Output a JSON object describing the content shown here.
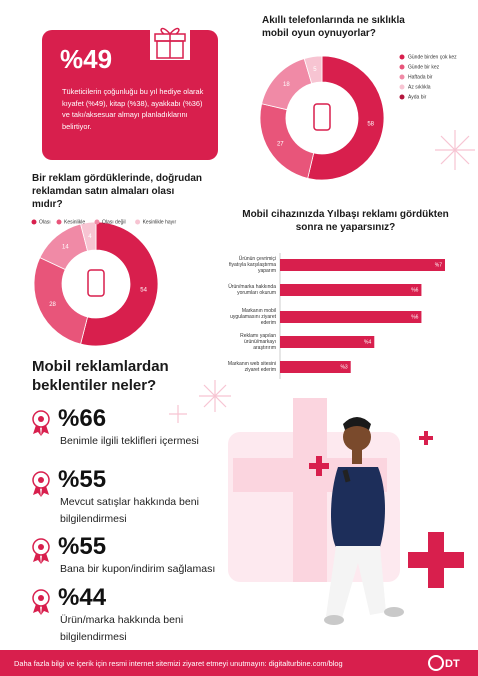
{
  "promo": {
    "headline": "%49",
    "text": "Tüketicilerin çoğunluğu bu yıl hediye olarak kıyafet (%49), kitap (%38), ayakkabı (%36) ve takı/aksesuar almayı planladıklarını belirtiyor."
  },
  "chart_data": [
    {
      "type": "pie",
      "title": "Akıllı telefonlarında ne sıklıkla mobil oyun oynuyorlar?",
      "categories": [
        "Günde birden çok kez",
        "Günde bir kez",
        "Haftada bir",
        "Az sıklıkla",
        "Ayda bir"
      ],
      "values": [
        58,
        27,
        18,
        5,
        null
      ],
      "colors": [
        "#d81f4d",
        "#e8557a",
        "#f08aa6",
        "#f7c4d2",
        "#b3173d"
      ],
      "legend": "right"
    },
    {
      "type": "pie",
      "title": "Bir reklam gördüklerinde, doğrudan reklamdan satın almaları olası mıdır?",
      "categories": [
        "Olası",
        "Kesinlikle",
        "Olası değil",
        "Kesinlikle hayır"
      ],
      "values": [
        54,
        28,
        14,
        4
      ],
      "colors": [
        "#d81f4d",
        "#e8557a",
        "#f08aa6",
        "#f7c4d2"
      ],
      "legend": "top"
    },
    {
      "type": "bar",
      "title": "Mobil cihazınızda Yılbaşı reklamı gördükten sonra ne yaparsınız?",
      "categories": [
        "Ürünün çevrimiçi fiyatıyla karşılaştırma yaparım",
        "Ürün/marka hakkında yorumları okurum",
        "Markanın mobil uygulamasını ziyaret ederim",
        "Reklamı yapılan ürünü/markayı araştırırım",
        "Markanın web sitesini ziyaret ederim"
      ],
      "values": [
        7,
        6,
        6,
        4,
        3
      ],
      "value_labels": [
        "%7",
        "%6",
        "%6",
        "%4",
        "%3"
      ],
      "color": "#d81f4d",
      "xlim": [
        0,
        7
      ]
    }
  ],
  "expectations": {
    "title": "Mobil reklamlardan beklentiler neler?",
    "items": [
      {
        "value": "%66",
        "text": "Benimle ilgili teklifleri içermesi"
      },
      {
        "value": "%55",
        "text": "Mevcut satışlar hakkında beni bilgilendirmesi"
      },
      {
        "value": "%55",
        "text": "Bana bir kupon/indirim sağlaması"
      },
      {
        "value": "%44",
        "text": "Ürün/marka hakkında beni bilgilendirmesi"
      }
    ]
  },
  "footer": {
    "text": "Daha fazla bilgi ve içerik için resmi internet sitemizi ziyaret etmeyi unutmayın: digitalturbine.com/blog",
    "logo": "DT"
  }
}
